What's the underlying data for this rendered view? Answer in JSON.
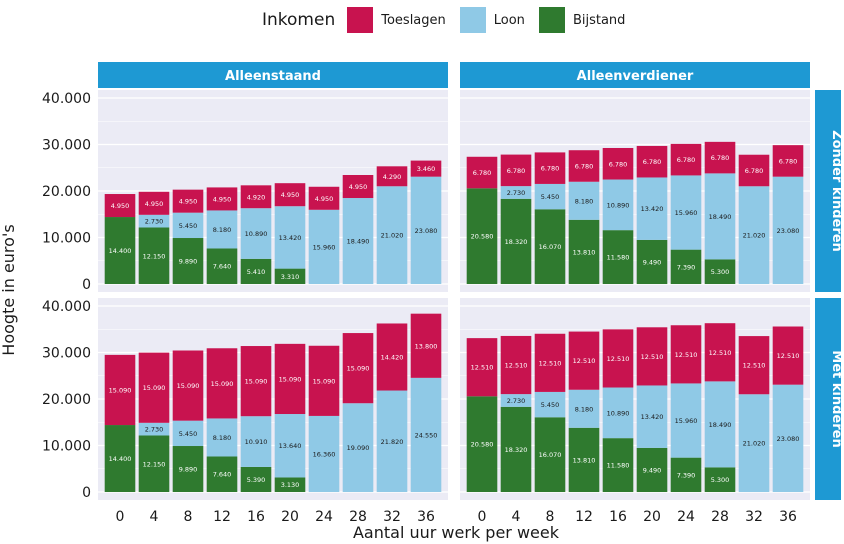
{
  "legend": {
    "title": "Inkomen",
    "items": [
      {
        "key": "toeslagen",
        "label": "Toeslagen",
        "color": "#c8134f"
      },
      {
        "key": "loon",
        "label": "Loon",
        "color": "#8fc9e6"
      },
      {
        "key": "bijstand",
        "label": "Bijstand",
        "color": "#2f7a2f"
      }
    ]
  },
  "colors": {
    "strip": "#1e99d3",
    "panel_bg": "#ebebf5",
    "grid": "#ffffff",
    "text": "#1a1a1a"
  },
  "chart_data": {
    "type": "bar",
    "stacked": true,
    "xlabel": "Aantal uur werk per week",
    "ylabel": "Hoogte in euro's",
    "ylim": [
      0,
      40000
    ],
    "y_ticks": [
      0,
      10000,
      20000,
      30000,
      40000
    ],
    "y_tick_labels": [
      "0",
      "10.000",
      "20.000",
      "30.000",
      "40.000"
    ],
    "categories": [
      "0",
      "4",
      "8",
      "12",
      "16",
      "20",
      "24",
      "28",
      "32",
      "36"
    ],
    "col_facets": [
      "Alleenstaand",
      "Alleenverdiener"
    ],
    "row_facets": [
      "Zonder kinderen",
      "Met kinderen"
    ],
    "stack_order": [
      "bijstand",
      "loon",
      "toeslagen"
    ],
    "panels": [
      {
        "row": 0,
        "col": 0,
        "bijstand": [
          14400,
          12150,
          9890,
          7640,
          5410,
          3310,
          0,
          0,
          0,
          0
        ],
        "loon": [
          0,
          2730,
          5450,
          8180,
          10890,
          13420,
          15960,
          18490,
          21020,
          23080
        ],
        "toeslagen": [
          4950,
          4950,
          4950,
          4950,
          4920,
          4950,
          4950,
          4950,
          4290,
          3460
        ],
        "bijstand_labels": [
          "14.400",
          "12.150",
          "9.890",
          "7.640",
          "5.410",
          "3.310",
          "",
          "",
          "",
          ""
        ],
        "loon_labels": [
          "",
          "2.730",
          "5.450",
          "8.180",
          "10.890",
          "13.420",
          "15.960",
          "18.490",
          "21.020",
          "23.080"
        ],
        "toeslagen_labels": [
          "4.950",
          "4.950",
          "4.950",
          "4.950",
          "4.920",
          "4.950",
          "4.950",
          "4.950",
          "4.290",
          "3.460"
        ]
      },
      {
        "row": 0,
        "col": 1,
        "bijstand": [
          20580,
          18320,
          16070,
          13810,
          11580,
          9490,
          7390,
          5300,
          0,
          0
        ],
        "loon": [
          0,
          2730,
          5450,
          8180,
          10890,
          13420,
          15960,
          18490,
          21020,
          23080
        ],
        "toeslagen": [
          6780,
          6780,
          6780,
          6780,
          6780,
          6780,
          6780,
          6780,
          6780,
          6780
        ],
        "bijstand_labels": [
          "20.580",
          "18.320",
          "16.070",
          "13.810",
          "11.580",
          "9.490",
          "7.390",
          "5.300",
          "",
          ""
        ],
        "loon_labels": [
          "",
          "2.730",
          "5.450",
          "8.180",
          "10.890",
          "13.420",
          "15.960",
          "18.490",
          "21.020",
          "23.080"
        ],
        "toeslagen_labels": [
          "6.780",
          "6.780",
          "6.780",
          "6.780",
          "6.780",
          "6.780",
          "6.780",
          "6.780",
          "6.780",
          "6.780"
        ]
      },
      {
        "row": 1,
        "col": 0,
        "bijstand": [
          14400,
          12150,
          9890,
          7640,
          5390,
          3130,
          0,
          0,
          0,
          0
        ],
        "loon": [
          0,
          2730,
          5450,
          8180,
          10910,
          13640,
          16360,
          19090,
          21820,
          24550
        ],
        "toeslagen": [
          15090,
          15090,
          15090,
          15090,
          15090,
          15090,
          15090,
          15090,
          14420,
          13800
        ],
        "bijstand_labels": [
          "14.400",
          "12.150",
          "9.890",
          "7.640",
          "5.390",
          "3.130",
          "",
          "",
          "",
          ""
        ],
        "loon_labels": [
          "",
          "2.730",
          "5.450",
          "8.180",
          "10.910",
          "13.640",
          "16.360",
          "19.090",
          "21.820",
          "24.550"
        ],
        "toeslagen_labels": [
          "15.090",
          "15.090",
          "15.090",
          "15.090",
          "15.090",
          "15.090",
          "15.090",
          "15.090",
          "14.420",
          "13.800"
        ]
      },
      {
        "row": 1,
        "col": 1,
        "bijstand": [
          20580,
          18320,
          16070,
          13810,
          11580,
          9490,
          7390,
          5300,
          0,
          0
        ],
        "loon": [
          0,
          2730,
          5450,
          8180,
          10890,
          13420,
          15960,
          18490,
          21020,
          23080
        ],
        "toeslagen": [
          12510,
          12510,
          12510,
          12510,
          12510,
          12510,
          12510,
          12510,
          12510,
          12510
        ],
        "bijstand_labels": [
          "20.580",
          "18.320",
          "16.070",
          "13.810",
          "11.580",
          "9.490",
          "7.390",
          "5.300",
          "",
          ""
        ],
        "loon_labels": [
          "",
          "2.730",
          "5.450",
          "8.180",
          "10.890",
          "13.420",
          "15.960",
          "18.490",
          "21.020",
          "23.080"
        ],
        "toeslagen_labels": [
          "12.510",
          "12.510",
          "12.510",
          "12.510",
          "12.510",
          "12.510",
          "12.510",
          "12.510",
          "12.510",
          "12.510"
        ]
      }
    ]
  }
}
